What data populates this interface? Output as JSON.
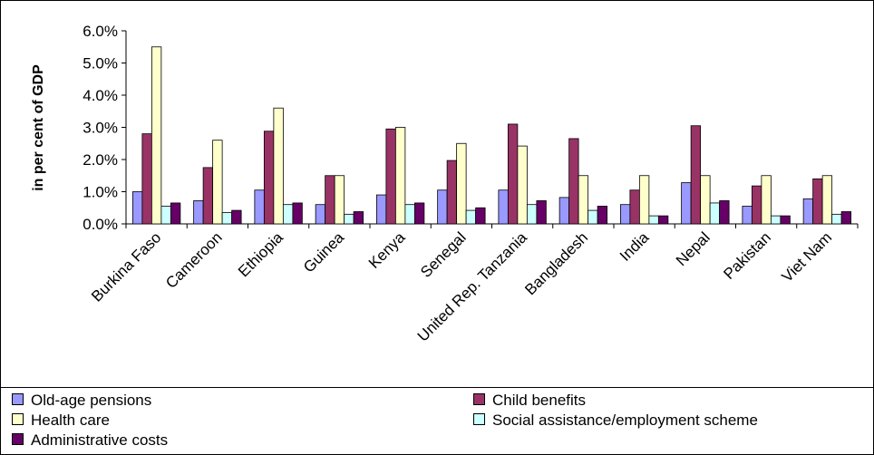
{
  "chart_data": {
    "type": "bar",
    "title": "",
    "xlabel": "",
    "ylabel": "in per cent of GDP",
    "ylim": [
      0,
      6
    ],
    "yticks": [
      "0.0%",
      "1.0%",
      "2.0%",
      "3.0%",
      "4.0%",
      "5.0%",
      "6.0%"
    ],
    "grid": false,
    "legend_position": "bottom",
    "categories": [
      "Burkina Faso",
      "Cameroon",
      "Ethiopia",
      "Guinea",
      "Kenya",
      "Senegal",
      "United Rep. Tanzania",
      "Bangladesh",
      "India",
      "Nepal",
      "Pakistan",
      "Viet Nam"
    ],
    "series": [
      {
        "name": "Old-age pensions",
        "color": "#9999ff",
        "values": [
          1.0,
          0.72,
          1.05,
          0.6,
          0.9,
          1.05,
          1.05,
          0.82,
          0.6,
          1.28,
          0.55,
          0.78
        ]
      },
      {
        "name": "Child benefits",
        "color": "#993366",
        "values": [
          2.8,
          1.75,
          2.88,
          1.5,
          2.95,
          1.97,
          3.1,
          2.65,
          1.05,
          3.05,
          1.18,
          1.4
        ]
      },
      {
        "name": "Health care",
        "color": "#ffffcc",
        "values": [
          5.5,
          2.6,
          3.6,
          1.5,
          3.0,
          2.5,
          2.42,
          1.5,
          1.5,
          1.5,
          1.5,
          1.5
        ]
      },
      {
        "name": "Social assistance/employment scheme",
        "color": "#ccffff",
        "values": [
          0.55,
          0.35,
          0.6,
          0.3,
          0.6,
          0.42,
          0.6,
          0.42,
          0.25,
          0.65,
          0.25,
          0.3
        ]
      },
      {
        "name": "Administrative costs",
        "color": "#660066",
        "values": [
          0.65,
          0.42,
          0.65,
          0.38,
          0.65,
          0.5,
          0.72,
          0.55,
          0.25,
          0.72,
          0.25,
          0.38
        ]
      }
    ]
  }
}
